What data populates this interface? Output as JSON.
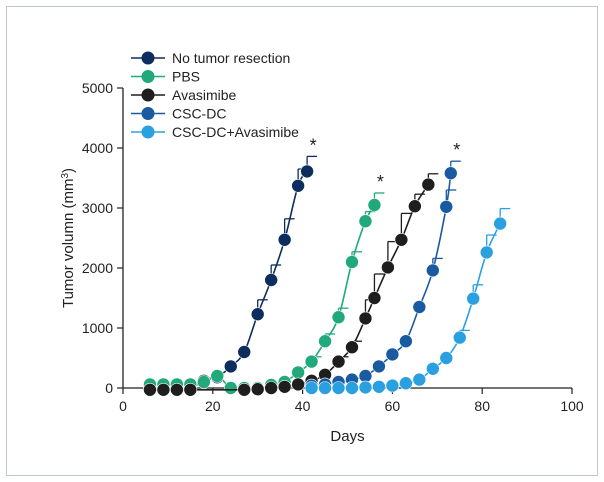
{
  "chart_data": {
    "type": "line",
    "xlabel": "Days",
    "ylabel_main": "Tumor volumn (mm",
    "ylabel_sup": "3",
    "ylabel_end": ")",
    "xlim": [
      0,
      100
    ],
    "ylim": [
      0,
      5000
    ],
    "xticks": [
      0,
      20,
      40,
      60,
      80,
      100
    ],
    "yticks": [
      0,
      1000,
      2000,
      3000,
      4000,
      5000
    ],
    "grid": false,
    "legend_position": "top-left",
    "significance_marker": "*",
    "series": [
      {
        "name": "No tumor resection",
        "color": "#0d2d5e",
        "x": [
          6,
          9,
          12,
          15,
          18,
          21,
          24,
          27,
          30,
          33,
          36,
          39,
          41
        ],
        "y": [
          0,
          0,
          0,
          0,
          120,
          180,
          360,
          600,
          1230,
          1800,
          2470,
          3370,
          3610
        ],
        "error": [
          0,
          0,
          0,
          0,
          0,
          0,
          0,
          0,
          240,
          250,
          350,
          280,
          250
        ],
        "significance": [
          false,
          false,
          false,
          false,
          false,
          false,
          false,
          false,
          false,
          false,
          false,
          false,
          true
        ]
      },
      {
        "name": "PBS",
        "color": "#20a97a",
        "x": [
          6,
          9,
          12,
          15,
          18,
          21,
          24,
          27,
          30,
          33,
          36,
          39,
          42,
          45,
          48,
          51,
          54,
          56
        ],
        "y": [
          60,
          60,
          60,
          60,
          100,
          200,
          0,
          0,
          0,
          50,
          100,
          260,
          440,
          780,
          1180,
          2100,
          2780,
          3050
        ],
        "error": [
          0,
          0,
          0,
          0,
          0,
          0,
          0,
          0,
          0,
          0,
          0,
          0,
          80,
          120,
          150,
          170,
          160,
          200
        ],
        "significance": [
          false,
          false,
          false,
          false,
          false,
          false,
          false,
          false,
          false,
          false,
          false,
          false,
          false,
          false,
          false,
          false,
          false,
          true
        ]
      },
      {
        "name": "Avasimibe",
        "color": "#1e1e1e",
        "x": [
          6,
          9,
          12,
          15,
          27,
          30,
          33,
          36,
          39,
          42,
          45,
          48,
          51,
          54,
          56,
          59,
          62,
          65,
          68
        ],
        "y": [
          -30,
          -30,
          -30,
          -30,
          -30,
          -20,
          0,
          20,
          60,
          120,
          220,
          440,
          680,
          1160,
          1500,
          2010,
          2470,
          3030,
          3390
        ],
        "error": [
          0,
          0,
          0,
          0,
          0,
          0,
          0,
          0,
          0,
          0,
          0,
          80,
          100,
          310,
          400,
          430,
          440,
          200,
          180
        ],
        "significance": [
          false,
          false,
          false,
          false,
          false,
          false,
          false,
          false,
          false,
          false,
          false,
          false,
          false,
          false,
          false,
          false,
          false,
          false,
          false
        ]
      },
      {
        "name": "CSC-DC",
        "color": "#1a5aa0",
        "x": [
          42,
          45,
          48,
          51,
          54,
          57,
          60,
          63,
          66,
          69,
          72
        ],
        "y": [
          40,
          60,
          100,
          140,
          200,
          360,
          560,
          780,
          1350,
          1960,
          3020
        ],
        "error": [
          0,
          0,
          0,
          0,
          0,
          0,
          0,
          0,
          0,
          200,
          280
        ],
        "significance": [
          false,
          false,
          false,
          false,
          false,
          false,
          false,
          false,
          false,
          false,
          false
        ]
      },
      {
        "name": "CSC-DC+Avasimibe",
        "color": "#2aa0e0",
        "x": [
          42,
          45,
          48,
          51,
          54,
          57,
          60,
          63,
          66,
          69,
          72,
          75,
          78,
          81,
          84
        ],
        "y": [
          0,
          0,
          0,
          0,
          10,
          20,
          40,
          80,
          140,
          320,
          500,
          840,
          1490,
          2260,
          2740
        ],
        "error": [
          0,
          0,
          0,
          0,
          0,
          0,
          0,
          0,
          0,
          0,
          0,
          120,
          230,
          290,
          250
        ],
        "significance": [
          false,
          false,
          false,
          false,
          false,
          false,
          false,
          false,
          false,
          false,
          false,
          false,
          false,
          false,
          false
        ]
      }
    ],
    "csc_dc_tail": {
      "x": 73,
      "y": 3580,
      "error": 200,
      "significant": true
    }
  }
}
